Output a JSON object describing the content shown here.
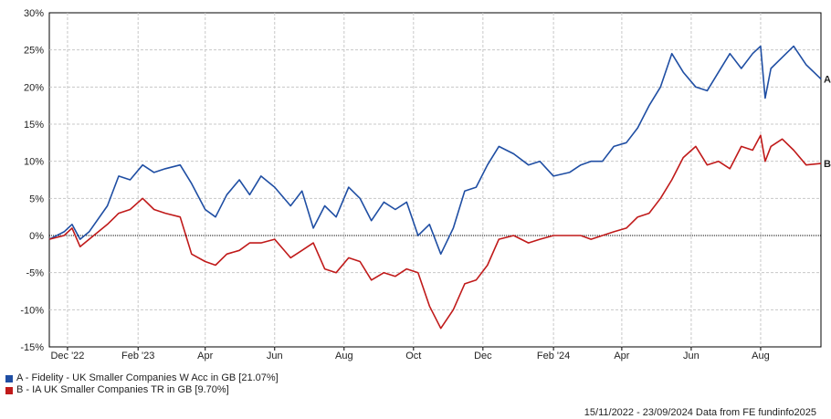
{
  "chart_data": {
    "type": "line",
    "ylim": [
      -15,
      30
    ],
    "y_ticks": [
      "30%",
      "25%",
      "20%",
      "15%",
      "10%",
      "5%",
      "0%",
      "-5%",
      "-10%",
      "-15%"
    ],
    "x_ticks": [
      "Dec '22",
      "Feb '23",
      "Apr",
      "Jun",
      "Aug",
      "Oct",
      "Dec",
      "Feb '24",
      "Apr",
      "Jun",
      "Aug"
    ],
    "grid": true,
    "zero_line": "dotted",
    "series": [
      {
        "key": "A",
        "name": "A - Fidelity - UK Smaller Companies W Acc in GB [21.07%]",
        "color": "#1f4ea3",
        "x": [
          "2022-11-15",
          "2022-11-28",
          "2022-12-05",
          "2022-12-12",
          "2022-12-20",
          "2023-01-05",
          "2023-01-15",
          "2023-01-25",
          "2023-02-05",
          "2023-02-15",
          "2023-02-25",
          "2023-03-10",
          "2023-03-20",
          "2023-04-01",
          "2023-04-10",
          "2023-04-20",
          "2023-05-01",
          "2023-05-10",
          "2023-05-20",
          "2023-06-01",
          "2023-06-15",
          "2023-06-25",
          "2023-07-05",
          "2023-07-15",
          "2023-07-25",
          "2023-08-05",
          "2023-08-15",
          "2023-08-25",
          "2023-09-05",
          "2023-09-15",
          "2023-09-25",
          "2023-10-05",
          "2023-10-15",
          "2023-10-25",
          "2023-11-05",
          "2023-11-15",
          "2023-11-25",
          "2023-12-05",
          "2023-12-15",
          "2023-12-28",
          "2024-01-10",
          "2024-01-20",
          "2024-02-01",
          "2024-02-15",
          "2024-02-25",
          "2024-03-05",
          "2024-03-15",
          "2024-03-25",
          "2024-04-05",
          "2024-04-15",
          "2024-04-25",
          "2024-05-05",
          "2024-05-15",
          "2024-05-25",
          "2024-06-05",
          "2024-06-15",
          "2024-06-25",
          "2024-07-05",
          "2024-07-15",
          "2024-07-25",
          "2024-08-01",
          "2024-08-05",
          "2024-08-10",
          "2024-08-20",
          "2024-08-30",
          "2024-09-10",
          "2024-09-23"
        ],
        "y": [
          -0.5,
          0.5,
          1.5,
          -0.5,
          0.5,
          4.0,
          8.0,
          7.5,
          9.5,
          8.5,
          9.0,
          9.5,
          7.0,
          3.5,
          2.5,
          5.5,
          7.5,
          5.5,
          8.0,
          6.5,
          4.0,
          6.0,
          1.0,
          4.0,
          2.5,
          6.5,
          5.0,
          2.0,
          4.5,
          3.5,
          4.5,
          0.0,
          1.5,
          -2.5,
          1.0,
          6.0,
          6.5,
          9.5,
          12.0,
          11.0,
          9.5,
          10.0,
          8.0,
          8.5,
          9.5,
          10.0,
          10.0,
          12.0,
          12.5,
          14.5,
          17.5,
          20.0,
          24.5,
          22.0,
          20.0,
          19.5,
          22.0,
          24.5,
          22.5,
          24.5,
          25.5,
          18.5,
          22.5,
          24.0,
          25.5,
          23.0,
          21.07
        ]
      },
      {
        "key": "B",
        "name": "B - IA UK Smaller Companies TR in GB [9.70%]",
        "color": "#c01a1a",
        "x": [
          "2022-11-15",
          "2022-11-28",
          "2022-12-05",
          "2022-12-12",
          "2022-12-20",
          "2023-01-05",
          "2023-01-15",
          "2023-01-25",
          "2023-02-05",
          "2023-02-15",
          "2023-02-25",
          "2023-03-10",
          "2023-03-20",
          "2023-04-01",
          "2023-04-10",
          "2023-04-20",
          "2023-05-01",
          "2023-05-10",
          "2023-05-20",
          "2023-06-01",
          "2023-06-15",
          "2023-06-25",
          "2023-07-05",
          "2023-07-15",
          "2023-07-25",
          "2023-08-05",
          "2023-08-15",
          "2023-08-25",
          "2023-09-05",
          "2023-09-15",
          "2023-09-25",
          "2023-10-05",
          "2023-10-15",
          "2023-10-25",
          "2023-11-05",
          "2023-11-15",
          "2023-11-25",
          "2023-12-05",
          "2023-12-15",
          "2023-12-28",
          "2024-01-10",
          "2024-01-20",
          "2024-02-01",
          "2024-02-15",
          "2024-02-25",
          "2024-03-05",
          "2024-03-15",
          "2024-03-25",
          "2024-04-05",
          "2024-04-15",
          "2024-04-25",
          "2024-05-05",
          "2024-05-15",
          "2024-05-25",
          "2024-06-05",
          "2024-06-15",
          "2024-06-25",
          "2024-07-05",
          "2024-07-15",
          "2024-07-25",
          "2024-08-01",
          "2024-08-05",
          "2024-08-10",
          "2024-08-20",
          "2024-08-30",
          "2024-09-10",
          "2024-09-23"
        ],
        "y": [
          -0.5,
          0.0,
          1.0,
          -1.5,
          -0.5,
          1.5,
          3.0,
          3.5,
          5.0,
          3.5,
          3.0,
          2.5,
          -2.5,
          -3.5,
          -4.0,
          -2.5,
          -2.0,
          -1.0,
          -1.0,
          -0.5,
          -3.0,
          -2.0,
          -1.0,
          -4.5,
          -5.0,
          -3.0,
          -3.5,
          -6.0,
          -5.0,
          -5.5,
          -4.5,
          -5.0,
          -9.5,
          -12.5,
          -10.0,
          -6.5,
          -6.0,
          -4.0,
          -0.5,
          0.0,
          -1.0,
          -0.5,
          0.0,
          0.0,
          0.0,
          -0.5,
          0.0,
          0.5,
          1.0,
          2.5,
          3.0,
          5.0,
          7.5,
          10.5,
          12.0,
          9.5,
          10.0,
          9.0,
          12.0,
          11.5,
          13.5,
          10.0,
          12.0,
          13.0,
          11.5,
          9.5,
          9.7
        ]
      }
    ]
  },
  "legend": [
    {
      "label": "A - Fidelity - UK Smaller Companies W Acc in GB [21.07%]",
      "color": "#1f4ea3"
    },
    {
      "label": "B - IA UK Smaller Companies TR in GB [9.70%]",
      "color": "#c01a1a"
    }
  ],
  "footer": "15/11/2022 - 23/09/2024 Data from FE fundinfo2025"
}
